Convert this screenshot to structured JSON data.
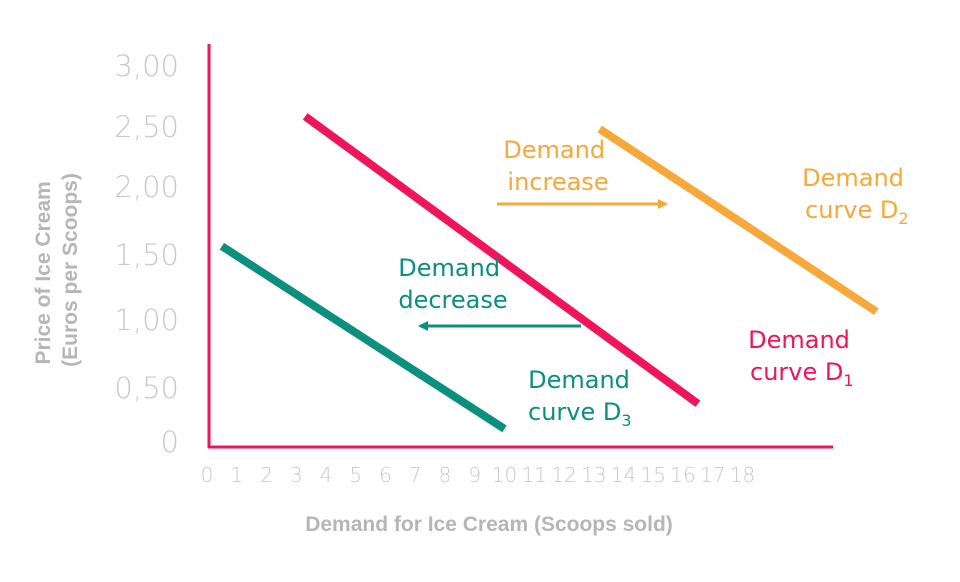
{
  "chart_data": {
    "type": "line",
    "ylabel_line1": "Price of Ice Cream",
    "ylabel_line2": "(Euros per Scoops)",
    "xlabel": "Demand for Ice Cream (Scoops sold)",
    "x_ticks": [
      "0",
      "1",
      "2",
      "3",
      "4",
      "5",
      "6",
      "7",
      "8",
      "9",
      "10",
      "11",
      "12",
      "13",
      "14",
      "15",
      "16",
      "17",
      "18"
    ],
    "y_ticks": [
      "0",
      "0,50",
      "1,00",
      "1,50",
      "2,00",
      "2,50",
      "3,00"
    ],
    "xlim": [
      0,
      18
    ],
    "ylim": [
      0,
      3
    ],
    "grid": false,
    "series": [
      {
        "label_line1": "Demand",
        "label_line2": "curve D",
        "label_sub": "1",
        "color": "#f0145a",
        "x": [
          3.3,
          16.5
        ],
        "y": [
          2.6,
          0.32
        ]
      },
      {
        "label_line1": "Demand",
        "label_line2": "curve D",
        "label_sub": "2",
        "color": "#f7a83a",
        "x": [
          13.2,
          22.5
        ],
        "y": [
          2.5,
          1.05
        ]
      },
      {
        "label_line1": "Demand",
        "label_line2": "curve D",
        "label_sub": "3",
        "color": "#0b8f7f",
        "x": [
          0.5,
          10.0
        ],
        "y": [
          1.57,
          0.12
        ]
      }
    ],
    "annotations": [
      {
        "line1": "Demand",
        "line2": "increase",
        "color": "#f7a83a",
        "direction": "right"
      },
      {
        "line1": "Demand",
        "line2": "decrease",
        "color": "#0b8f7f",
        "direction": "left"
      }
    ]
  }
}
